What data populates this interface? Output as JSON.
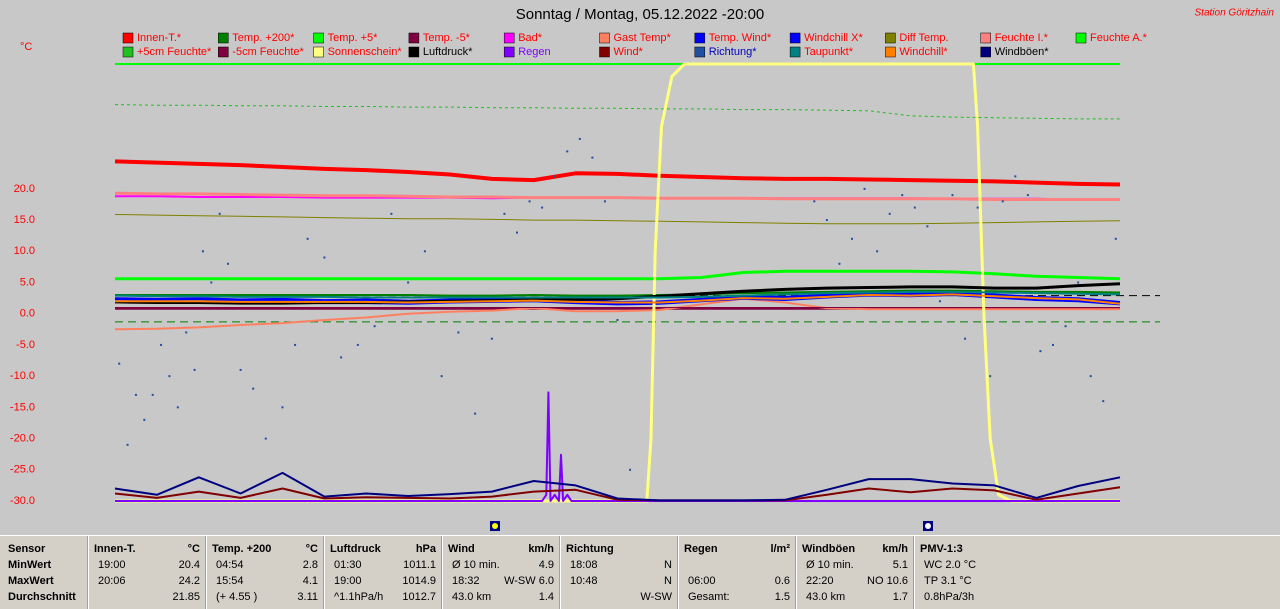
{
  "chart_data": {
    "type": "line",
    "title": "Sonntag / Montag, 05.12.2022  -20:00",
    "station": "Station Göritzhain",
    "y_unit": "°C",
    "ylim": [
      -30,
      40
    ],
    "yticks": [
      {
        "value": -30,
        "label": "-30.0"
      },
      {
        "value": -25,
        "label": "-25.0"
      },
      {
        "value": -20,
        "label": "-20.0"
      },
      {
        "value": -15,
        "label": "-15.0"
      },
      {
        "value": -10,
        "label": "-10.0"
      },
      {
        "value": -5,
        "label": "-5.0"
      },
      {
        "value": 0,
        "label": "0.0"
      },
      {
        "value": 5,
        "label": "5.0"
      },
      {
        "value": 10,
        "label": "10.0"
      },
      {
        "value": 15,
        "label": "15.0"
      },
      {
        "value": 20,
        "label": "20.0"
      }
    ],
    "xlim": [
      0,
      24
    ],
    "x": [
      0,
      1,
      2,
      3,
      4,
      5,
      6,
      7,
      8,
      9,
      10,
      11,
      12,
      13,
      14,
      15,
      16,
      17,
      18,
      19,
      20,
      21,
      22,
      23,
      24
    ],
    "reference_lines": [
      {
        "value": 2.9,
        "color": "#000000"
      },
      {
        "value": -1.3,
        "color": "#008000"
      }
    ],
    "series": [
      {
        "name": "Innen-T.*",
        "color": "#ff0000",
        "label_color": "#ff0000",
        "width": 4,
        "values": [
          24.4,
          24.2,
          24.0,
          23.8,
          23.5,
          23.2,
          23.0,
          22.7,
          22.3,
          21.6,
          21.4,
          22.5,
          22.4,
          22.1,
          21.9,
          21.7,
          21.6,
          21.6,
          21.5,
          21.4,
          21.3,
          21.2,
          21.0,
          20.8,
          20.7
        ]
      },
      {
        "name": "Temp. +200*",
        "color": "#008000",
        "label_color": "#ff0000",
        "width": 2,
        "values": [
          3.0,
          3.0,
          3.0,
          3.0,
          3.0,
          3.0,
          3.0,
          3.0,
          2.9,
          2.9,
          3.0,
          2.9,
          2.9,
          3.0,
          3.1,
          3.3,
          3.4,
          3.5,
          3.6,
          3.7,
          3.7,
          3.6,
          3.5,
          3.5,
          3.4
        ]
      },
      {
        "name": "Temp. +5*",
        "color": "#00ff00",
        "label_color": "#ff0000",
        "width": 3,
        "values": [
          5.6,
          5.6,
          5.6,
          5.6,
          5.6,
          5.6,
          5.6,
          5.6,
          5.6,
          5.6,
          5.6,
          5.6,
          5.6,
          5.6,
          5.8,
          6.6,
          6.8,
          6.8,
          6.8,
          6.8,
          6.7,
          6.4,
          6.0,
          5.8,
          5.6
        ]
      },
      {
        "name": "Temp. -5*",
        "color": "#800040",
        "label_color": "#ff0000",
        "width": 2,
        "values": [
          0.8,
          0.8,
          0.8,
          0.8,
          0.8,
          0.8,
          0.8,
          0.8,
          0.8,
          0.8,
          0.8,
          0.8,
          0.8,
          0.8,
          0.8,
          0.8,
          0.8,
          0.8,
          0.8,
          0.8,
          0.8,
          0.8,
          0.8,
          0.8,
          0.8
        ]
      },
      {
        "name": "Bad*",
        "color": "#ff00ff",
        "label_color": "#ff0000",
        "width": 2,
        "values": [
          18.8,
          18.8,
          18.7,
          18.7,
          18.7,
          18.6,
          18.6,
          18.6,
          18.6,
          18.5,
          18.6,
          18.6,
          18.6,
          18.5,
          18.5,
          18.5,
          18.5,
          18.5,
          18.5,
          18.5,
          18.4,
          18.4,
          18.4,
          18.3,
          18.3
        ]
      },
      {
        "name": "Gast Temp*",
        "color": "#ff8060",
        "label_color": "#ff0000",
        "width": 2,
        "values": [
          -2.5,
          -2.4,
          -2.2,
          -1.8,
          -1.5,
          -1.0,
          -0.6,
          0.0,
          0.3,
          0.5,
          0.9,
          0.4,
          0.4,
          0.6,
          1.5,
          2.4,
          1.8,
          0.9,
          0.7,
          0.7,
          0.7,
          0.7,
          0.7,
          0.7,
          0.7
        ]
      },
      {
        "name": "Temp. Wind*",
        "color": "#0000ff",
        "label_color": "#ff0000",
        "width": 3,
        "values": [
          2.4,
          2.3,
          2.4,
          2.2,
          2.3,
          2.1,
          2.2,
          2.0,
          2.2,
          2.3,
          2.5,
          2.1,
          1.8,
          1.9,
          2.3,
          2.8,
          2.6,
          3.0,
          3.3,
          3.2,
          3.4,
          3.0,
          2.6,
          2.4,
          1.8
        ]
      },
      {
        "name": "Windchill X*",
        "color": "#0000ff",
        "label_color": "#ff0000",
        "width": 2,
        "values": [
          1.9,
          1.8,
          1.9,
          1.7,
          1.8,
          1.7,
          1.7,
          1.6,
          1.8,
          1.9,
          2.0,
          1.7,
          1.5,
          1.6,
          2.0,
          2.4,
          2.2,
          2.6,
          2.9,
          2.8,
          3.0,
          2.6,
          2.2,
          2.0,
          1.5
        ]
      },
      {
        "name": "Diff Temp.",
        "color": "#808000",
        "label_color": "#ff0000",
        "width": 1,
        "values": [
          15.9,
          15.8,
          15.7,
          15.6,
          15.5,
          15.4,
          15.3,
          15.2,
          15.2,
          15.1,
          15.0,
          15.0,
          14.9,
          14.8,
          14.7,
          14.6,
          14.5,
          14.4,
          14.4,
          14.4,
          14.5,
          14.6,
          14.7,
          14.8,
          14.9
        ]
      },
      {
        "name": "Feuchte I.*",
        "color": "#ff8080",
        "label_color": "#ff0000",
        "width": 3,
        "values": [
          19.3,
          19.2,
          19.2,
          19.1,
          19.0,
          18.9,
          18.9,
          18.8,
          18.7,
          18.7,
          18.6,
          18.6,
          18.6,
          18.5,
          18.5,
          18.5,
          18.4,
          18.4,
          18.4,
          18.4,
          18.4,
          18.3,
          18.3,
          18.3,
          18.3
        ]
      },
      {
        "name": "Feuchte A.*",
        "color": "#00ff00",
        "label_color": "#ff0000",
        "width": 2,
        "values": [
          40,
          40,
          40,
          40,
          40,
          40,
          40,
          40,
          40,
          40,
          40,
          40,
          40,
          40,
          40,
          40,
          40,
          40,
          40,
          40,
          40,
          40,
          40,
          40,
          40
        ]
      },
      {
        "name": "+5cm Feuchte*",
        "color": "#20c020",
        "label_color": "#ff0000",
        "width": 1,
        "dash": true,
        "values": [
          33.5,
          33.4,
          33.4,
          33.3,
          33.3,
          33.2,
          33.2,
          33.1,
          33.1,
          33.0,
          33.0,
          32.9,
          32.9,
          32.8,
          32.8,
          32.7,
          32.7,
          32.6,
          32.5,
          31.7,
          31.5,
          31.4,
          31.3,
          31.2,
          31.2
        ]
      },
      {
        "name": "-5cm Feuchte*",
        "color": "#800040",
        "label_color": "#ff0000",
        "width": 1,
        "values": [
          1.0,
          1.0,
          1.0,
          1.0,
          1.0,
          1.0,
          1.0,
          1.0,
          1.0,
          1.0,
          1.0,
          1.0,
          1.0,
          1.0,
          1.0,
          1.0,
          1.0,
          1.0,
          1.0,
          1.0,
          1.0,
          1.0,
          1.0,
          1.0,
          1.0
        ]
      },
      {
        "name": "Sonnenschein*",
        "color": "#ffff80",
        "label_color": "#ff0000",
        "width": 3,
        "x": [
          0,
          12.7,
          12.8,
          12.9,
          13.05,
          13.3,
          13.6,
          20.5,
          20.6,
          20.75,
          20.9,
          21.1,
          21.4,
          24
        ],
        "values": [
          -30,
          -30,
          -20,
          10,
          30,
          38,
          40,
          40,
          30,
          0,
          -20,
          -29,
          -30,
          -30
        ]
      },
      {
        "name": "Luftdruck*",
        "color": "#000000",
        "label_color": "#000000",
        "width": 3,
        "values": [
          1.9,
          1.8,
          1.8,
          1.7,
          1.7,
          1.8,
          1.8,
          1.9,
          2.0,
          2.1,
          2.2,
          2.3,
          2.4,
          2.8,
          3.2,
          3.6,
          3.9,
          4.1,
          4.2,
          4.3,
          4.3,
          4.1,
          4.1,
          4.5,
          4.8
        ]
      },
      {
        "name": "Regen",
        "color": "#8000ff",
        "label_color": "#8000ff",
        "width": 2,
        "x": [
          0,
          10.2,
          10.3,
          10.35,
          10.4,
          10.5,
          10.6,
          10.65,
          10.7,
          10.8,
          10.9,
          11.0,
          24
        ],
        "values": [
          -30,
          -30,
          -29,
          -12.6,
          -30,
          -29,
          -30,
          -22.6,
          -30,
          -29,
          -30,
          -30,
          -30
        ]
      },
      {
        "name": "Wind*",
        "color": "#800000",
        "label_color": "#ff0000",
        "width": 2,
        "values": [
          -28.8,
          -29.5,
          -28.5,
          -29.5,
          -28.0,
          -29.6,
          -29.4,
          -29.5,
          -29.6,
          -29.3,
          -28.5,
          -28.2,
          -29.8,
          -29.9,
          -29.9,
          -29.9,
          -29.9,
          -29.0,
          -28.0,
          -28.6,
          -28.0,
          -28.3,
          -29.8,
          -28.8,
          -27.8
        ]
      },
      {
        "name": "Richtung*",
        "color": "#2050a0",
        "label_color": "#0000c0",
        "style": "dots",
        "x": [
          0.1,
          0.3,
          0.5,
          0.7,
          0.9,
          1.1,
          1.3,
          1.5,
          1.7,
          1.9,
          2.1,
          2.3,
          2.5,
          2.7,
          3.0,
          3.3,
          3.6,
          4.0,
          4.3,
          4.6,
          5.0,
          5.4,
          5.8,
          6.2,
          6.6,
          7.0,
          7.4,
          7.8,
          8.2,
          8.6,
          9.0,
          9.3,
          9.6,
          9.9,
          10.2,
          10.5,
          10.8,
          11.1,
          11.4,
          11.7,
          12.0,
          12.3,
          16.7,
          17.0,
          17.3,
          17.6,
          17.9,
          18.2,
          18.5,
          18.8,
          19.1,
          19.4,
          19.7,
          20.0,
          20.3,
          20.6,
          20.9,
          21.2,
          21.5,
          21.8,
          22.1,
          22.4,
          22.7,
          23.0,
          23.3,
          23.6,
          23.9
        ],
        "values": [
          -8,
          -21,
          -13,
          -17,
          -13,
          -5,
          -10,
          -15,
          -3,
          -9,
          10,
          5,
          16,
          8,
          -9,
          -12,
          -20,
          -15,
          -5,
          12,
          9,
          -7,
          -5,
          -2,
          16,
          5,
          10,
          -10,
          -3,
          -16,
          -4,
          16,
          13,
          18,
          17,
          22,
          26,
          28,
          25,
          18,
          -1,
          -25,
          18,
          15,
          8,
          12,
          20,
          10,
          16,
          19,
          17,
          14,
          2,
          19,
          -4,
          17,
          -10,
          18,
          22,
          19,
          -6,
          -5,
          -2,
          5,
          -10,
          -14,
          12
        ]
      },
      {
        "name": "Taupunkt*",
        "color": "#008080",
        "label_color": "#ff0000",
        "width": 2,
        "values": [
          2.9,
          2.8,
          2.8,
          2.7,
          2.7,
          2.7,
          2.6,
          2.6,
          2.6,
          2.6,
          2.6,
          2.6,
          2.6,
          2.6,
          2.7,
          2.9,
          3.1,
          3.3,
          3.4,
          3.5,
          3.5,
          3.4,
          3.3,
          3.2,
          3.1
        ]
      },
      {
        "name": "Windchill*",
        "color": "#ff8000",
        "label_color": "#ff0000",
        "width": 2,
        "values": [
          2.0,
          2.0,
          2.0,
          1.9,
          1.9,
          1.9,
          1.9,
          1.8,
          1.9,
          2.0,
          2.1,
          1.9,
          1.8,
          1.8,
          2.1,
          2.5,
          2.4,
          2.7,
          3.0,
          2.9,
          3.1,
          2.8,
          2.5,
          2.3,
          1.6
        ]
      },
      {
        "name": "Windböen*",
        "color": "#000080",
        "label_color": "#000000",
        "width": 2,
        "values": [
          -28.0,
          -29.0,
          -26.2,
          -28.8,
          -25.5,
          -29.3,
          -28.8,
          -29.2,
          -28.9,
          -28.5,
          -26.8,
          -27.5,
          -29.6,
          -29.9,
          -29.9,
          -29.9,
          -29.8,
          -28.2,
          -26.5,
          -26.5,
          -27.2,
          -27.5,
          -29.5,
          -27.6,
          -26.2
        ]
      }
    ]
  },
  "table": {
    "row_labels": [
      "Sensor",
      "MinWert",
      "MaxWert",
      "Durchschnitt"
    ],
    "columns": [
      {
        "header": {
          "left": "Innen-T.",
          "right": "°C"
        },
        "rows": [
          {
            "left": "19:00",
            "right": "20.4"
          },
          {
            "left": "20:06",
            "right": "24.2"
          },
          {
            "right": "21.85"
          }
        ]
      },
      {
        "header": {
          "left": "Temp. +200",
          "right": "°C"
        },
        "rows": [
          {
            "left": "04:54",
            "right": "2.8"
          },
          {
            "left": "15:54",
            "right": "4.1"
          },
          {
            "left": "(+ 4.55 )",
            "right": "3.11"
          }
        ]
      },
      {
        "header": {
          "left": "Luftdruck",
          "right": "hPa"
        },
        "rows": [
          {
            "left": "01:30",
            "right": "1011.1"
          },
          {
            "left": "19:00",
            "right": "1014.9"
          },
          {
            "left": "^1.1hPa/h",
            "right": "1012.7"
          }
        ]
      },
      {
        "header": {
          "left": "Wind",
          "right": "km/h"
        },
        "rows": [
          {
            "left": "Ø 10 min.",
            "right": "4.9"
          },
          {
            "left": "18:32",
            "right": "W-SW 6.0"
          },
          {
            "left": "43.0 km",
            "right": "1.4"
          }
        ]
      },
      {
        "header": {
          "left": "Richtung"
        },
        "rows": [
          {
            "left": "18:08",
            "right": "N"
          },
          {
            "left": "10:48",
            "right": "N"
          },
          {
            "right": "W-SW"
          }
        ]
      },
      {
        "header": {
          "left": "Regen",
          "right": "l/m²"
        },
        "rows": [
          null,
          {
            "left": "06:00",
            "right": "0.6"
          },
          {
            "left": "Gesamt:",
            "right": "1.5"
          }
        ]
      },
      {
        "header": {
          "left": "Windböen",
          "right": "km/h"
        },
        "rows": [
          {
            "left": "Ø 10 min.",
            "right": "5.1"
          },
          {
            "left": "22:20",
            "right": "NO 10.6"
          },
          {
            "left": "43.0 km",
            "right": "1.7"
          }
        ]
      },
      {
        "header": {
          "left": "PMV-1:3"
        },
        "rows": [
          {
            "left": "WC 2.0 °C"
          },
          {
            "left": "TP 3.1 °C"
          },
          {
            "left": "0.8hPa/3h"
          }
        ]
      }
    ]
  }
}
